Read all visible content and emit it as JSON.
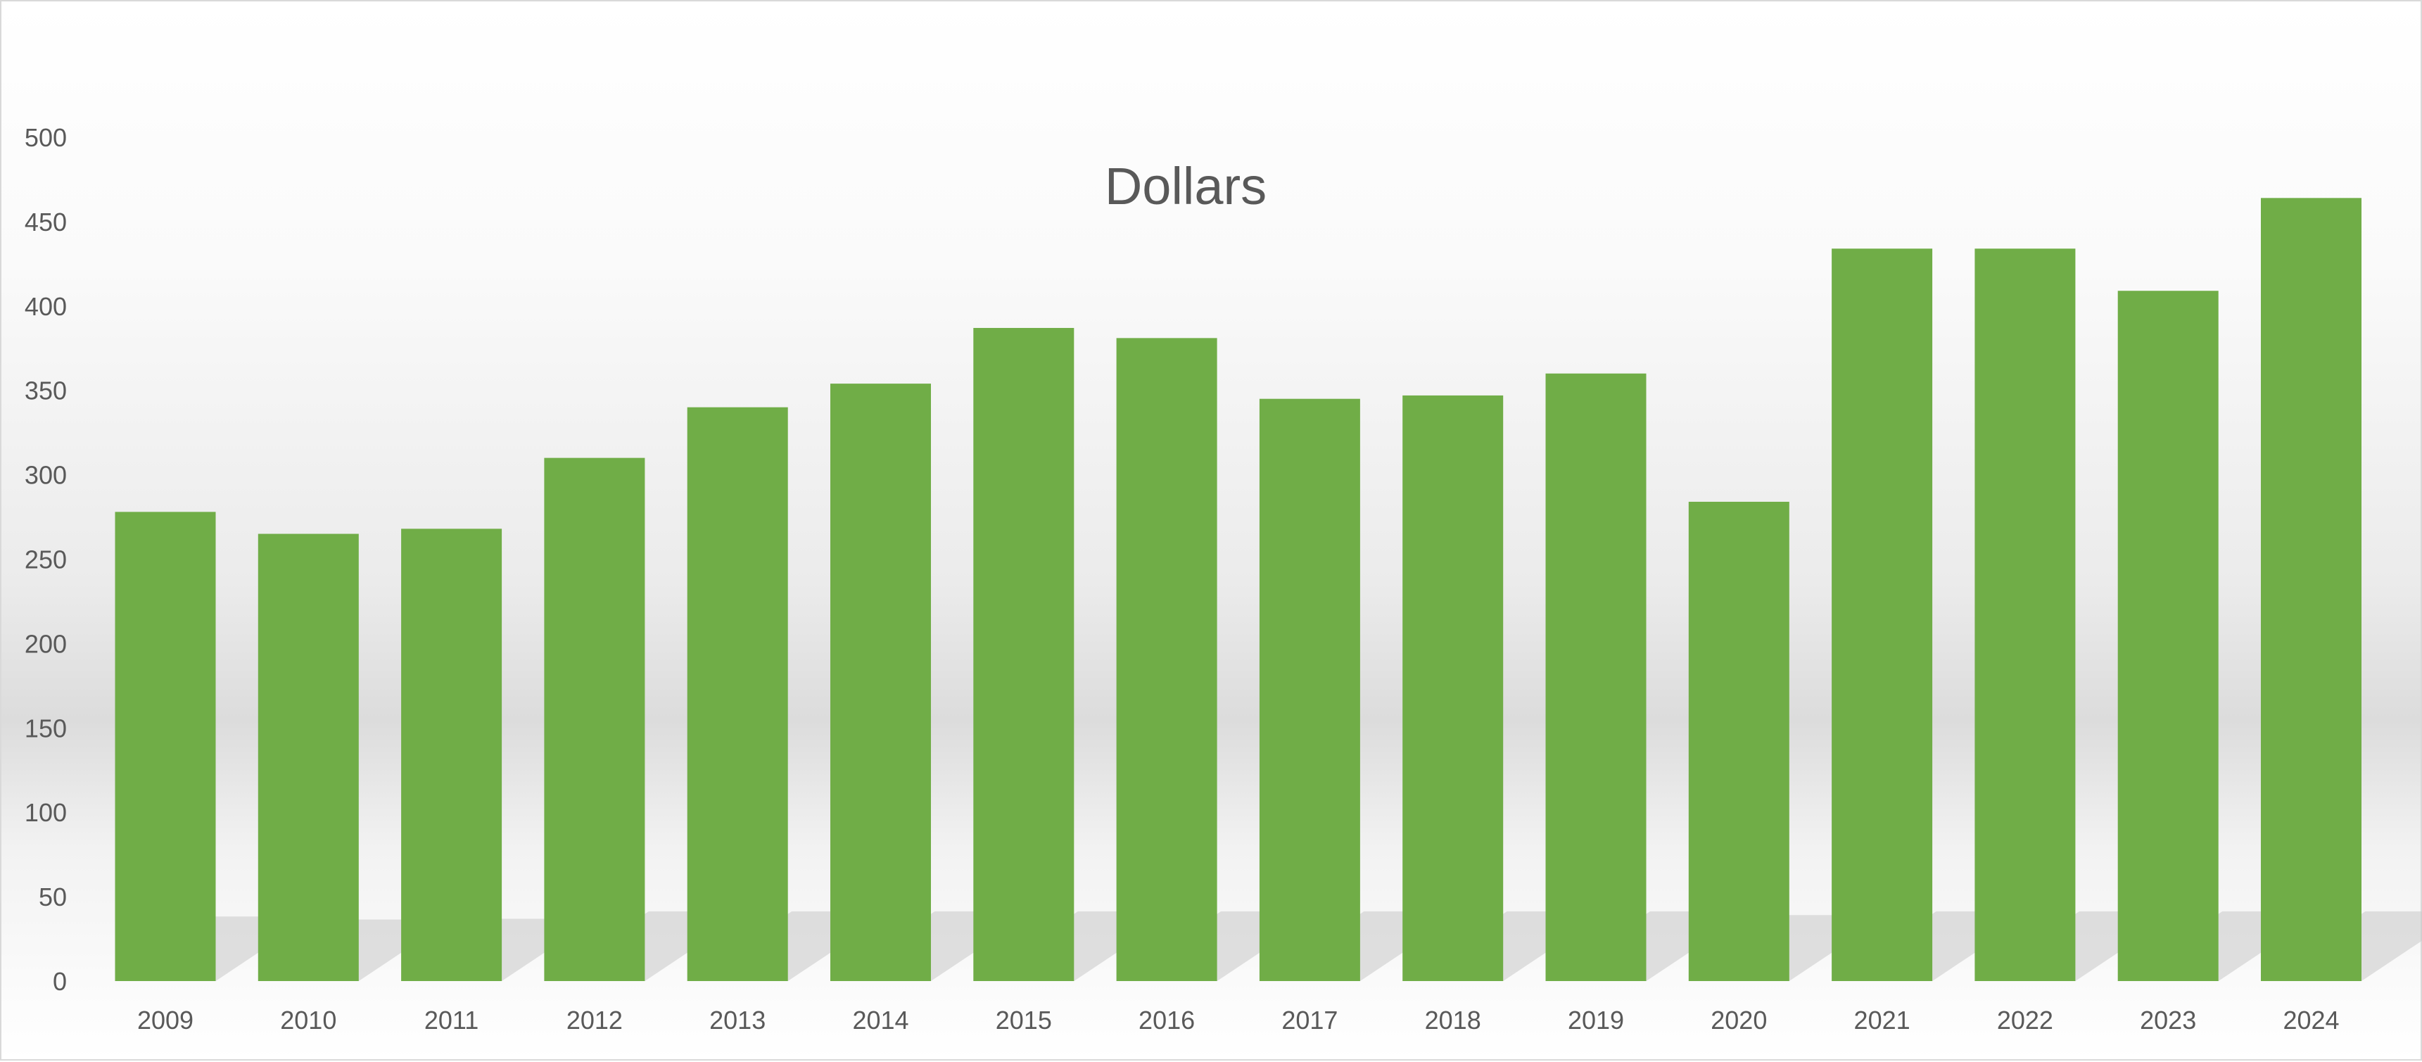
{
  "chart_data": {
    "type": "bar",
    "title": "Dollars",
    "categories": [
      "2009",
      "2010",
      "2011",
      "2012",
      "2013",
      "2014",
      "2015",
      "2016",
      "2017",
      "2018",
      "2019",
      "2020",
      "2021",
      "2022",
      "2023",
      "2024"
    ],
    "values": [
      278,
      265,
      268,
      310,
      340,
      354,
      387,
      381,
      345,
      347,
      360,
      284,
      434,
      434,
      409,
      464
    ],
    "ylim": [
      0,
      500
    ],
    "yticks": [
      0,
      50,
      100,
      150,
      200,
      250,
      300,
      350,
      400,
      450,
      500
    ],
    "xlabel": "",
    "ylabel": "",
    "grid": false,
    "legend": "none",
    "bar_color": "#70ad47",
    "shadow_color": "#c8c8c8"
  }
}
